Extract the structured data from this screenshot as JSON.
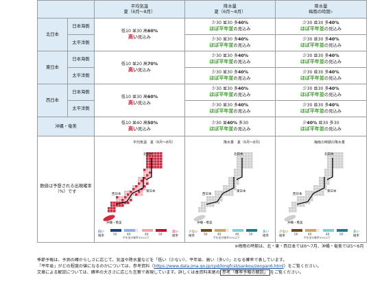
{
  "colors": {
    "header_bg": "#dcebf5",
    "high": "#c8102e",
    "normal": "#3a9a2a",
    "low": "#1a4fa0",
    "link": "#1a4fa0",
    "map_temp_high": "#d6283e",
    "map_temp_mid": "#f4b6bf",
    "map_gray": "#cfcfcf",
    "map_water": "#ffffff",
    "boundary": "#111111",
    "legend_low_dark": "#6a4a1e",
    "legend_low_light": "#c9a66b",
    "legend_high_light": "#7fcfd1",
    "legend_high_dark": "#1f7b86",
    "legend_blue_dark": "#1d3e8a",
    "legend_blue_light": "#8fb0e0",
    "legend_red_light": "#f0a4ae",
    "legend_red_dark": "#c8102e"
  },
  "headers": {
    "avg_temp": [
      "平均気温",
      "夏（6月～8月）"
    ],
    "precip": [
      "降水量",
      "夏（6月～8月）"
    ],
    "rainy": [
      "降水量",
      "梅雨の時期"
    ],
    "rainy_note": "※"
  },
  "rows": [
    {
      "region": "北日本",
      "subs": [
        {
          "name": "日本海側",
          "precip": {
            "probs": [
              "少30",
              "並30",
              "多40"
            ],
            "bold_index": 2,
            "label": "ほぼ平年並",
            "suffix": "の見込み"
          },
          "rainy": {
            "probs": [
              "少30",
              "並30",
              "多40"
            ],
            "bold_index": 2,
            "label": "ほぼ平年並",
            "suffix": "の見込み"
          }
        },
        {
          "name": "太平洋側",
          "precip": {
            "probs": [
              "少30",
              "並30",
              "多40"
            ],
            "bold_index": 2,
            "label": "ほぼ平年並",
            "suffix": "の見込み"
          },
          "rainy": {
            "probs": [
              "少30",
              "並30",
              "多40"
            ],
            "bold_index": 2,
            "label": "ほぼ平年並",
            "suffix": "の見込み"
          }
        }
      ],
      "temp": {
        "probs": [
          "低10",
          "並30",
          "高60"
        ],
        "bold_index": 2,
        "label": "高い",
        "suffix": "見込み"
      }
    },
    {
      "region": "東日本",
      "subs": [
        {
          "name": "日本海側",
          "precip": {
            "probs": [
              "少30",
              "並30",
              "多40"
            ],
            "bold_index": 2,
            "label": "ほぼ平年並",
            "suffix": "の見込み"
          },
          "rainy": {
            "probs": [
              "少30",
              "並30",
              "多40"
            ],
            "bold_index": 2,
            "label": "ほぼ平年並",
            "suffix": "の見込み"
          }
        },
        {
          "name": "太平洋側",
          "precip": {
            "probs": [
              "少30",
              "並30",
              "多40"
            ],
            "bold_index": 2,
            "label": "ほぼ平年並",
            "suffix": "の見込み"
          },
          "rainy": {
            "probs": [
              "少30",
              "並30",
              "多40"
            ],
            "bold_index": 2,
            "label": "ほぼ平年並",
            "suffix": "の見込み"
          }
        }
      ],
      "temp": {
        "probs": [
          "低10",
          "並20",
          "高70"
        ],
        "bold_index": 2,
        "label": "高い",
        "suffix": "見込み"
      }
    },
    {
      "region": "西日本",
      "subs": [
        {
          "name": "日本海側",
          "precip": {
            "probs": [
              "少30",
              "並30",
              "多40"
            ],
            "bold_index": 2,
            "label": "ほぼ平年並",
            "suffix": "の見込み"
          },
          "rainy": {
            "probs": [
              "少30",
              "並30",
              "多40"
            ],
            "bold_index": 2,
            "label": "ほぼ平年並",
            "suffix": "の見込み"
          }
        },
        {
          "name": "太平洋側",
          "precip": {
            "probs": [
              "少30",
              "並30",
              "多40"
            ],
            "bold_index": 2,
            "label": "ほぼ平年並",
            "suffix": "の見込み"
          },
          "rainy": {
            "probs": [
              "少30",
              "並30",
              "多40"
            ],
            "bold_index": 2,
            "label": "ほぼ平年並",
            "suffix": "の見込み"
          }
        }
      ],
      "temp": {
        "probs": [
          "低10",
          "並30",
          "高60"
        ],
        "bold_index": 2,
        "label": "高い",
        "suffix": "見込み"
      }
    }
  ],
  "okinawa": {
    "region": "沖縄・奄美",
    "temp": {
      "probs": [
        "低10",
        "並40",
        "高50"
      ],
      "bold_index": 2,
      "label": "高い",
      "suffix": "見込み"
    },
    "precip": {
      "probs": [
        "少30",
        "並40",
        "多30"
      ],
      "bold_index": 1,
      "label": "ほぼ平年並",
      "suffix": "の見込み"
    },
    "rainy": {
      "probs": [
        "少40",
        "並30",
        "多30"
      ],
      "bold_index": 0,
      "label": "ほぼ平年並",
      "suffix": "の見込み"
    }
  },
  "maps_row": {
    "note_lines": [
      "数値は予想される出現確率",
      "（%）です"
    ],
    "temp_map": {
      "title_lines": [
        "平均気温　夏（6月～8月）"
      ],
      "regions": [
        "北日本",
        "東日本",
        "西日本",
        "沖縄・奄美"
      ],
      "legend": {
        "low": "低い",
        "high": "高い",
        "low_unit": "確率",
        "high_unit": "確率",
        "ticks": [
          "50",
          "40",
          "40",
          "50"
        ],
        "mid": "平年並の確率30%以下"
      }
    },
    "precip_map": {
      "title_lines": [
        "降水量　夏（6月～8月）"
      ],
      "regions": [
        "北日本",
        "東日本",
        "西日本",
        "沖縄・奄美"
      ],
      "legend": {
        "low": "少ない",
        "high": "多い",
        "low_unit": "確率",
        "high_unit": "確率",
        "ticks": [
          "50",
          "40",
          "40",
          "50"
        ],
        "mid": "平年並の確率30%以下"
      }
    },
    "rainy_map": {
      "title_lines": [
        "梅雨の時期の降水量"
      ],
      "regions": [
        "北日本",
        "東日本",
        "西日本",
        "沖縄・奄美"
      ],
      "legend": {
        "low": "少ない",
        "high": "多い",
        "low_unit": "確率",
        "high_unit": "確率",
        "ticks": [
          "50",
          "40",
          "40",
          "50"
        ],
        "mid": "平年並の確率30%以下"
      }
    },
    "rainy_caption": "※梅雨の時期は、北・東・西日本では6～7月、沖縄・奄美では5～6月"
  },
  "footer": {
    "line1": "季節予報は、予測の確からしさに応じて、気温や降水量などを「低い（少ない）、平年並、高い（多い）」となる確率で表しています。",
    "line2_pre": "「平年並」がどの程度の値になるのかについては、参考資料（",
    "line2_link": "https://www.data.jma.go.jp/cpd/longfcst/sankou/zenpan6.html",
    "line2_post": "）をご覧ください。",
    "line3_pre": "文章による解説については、確率の大きさに応じた言葉で表現しています。詳しくは本資料末尾の",
    "line3_box": "参考「確率予報の解説」",
    "line3_post": "をご覧ください。"
  }
}
